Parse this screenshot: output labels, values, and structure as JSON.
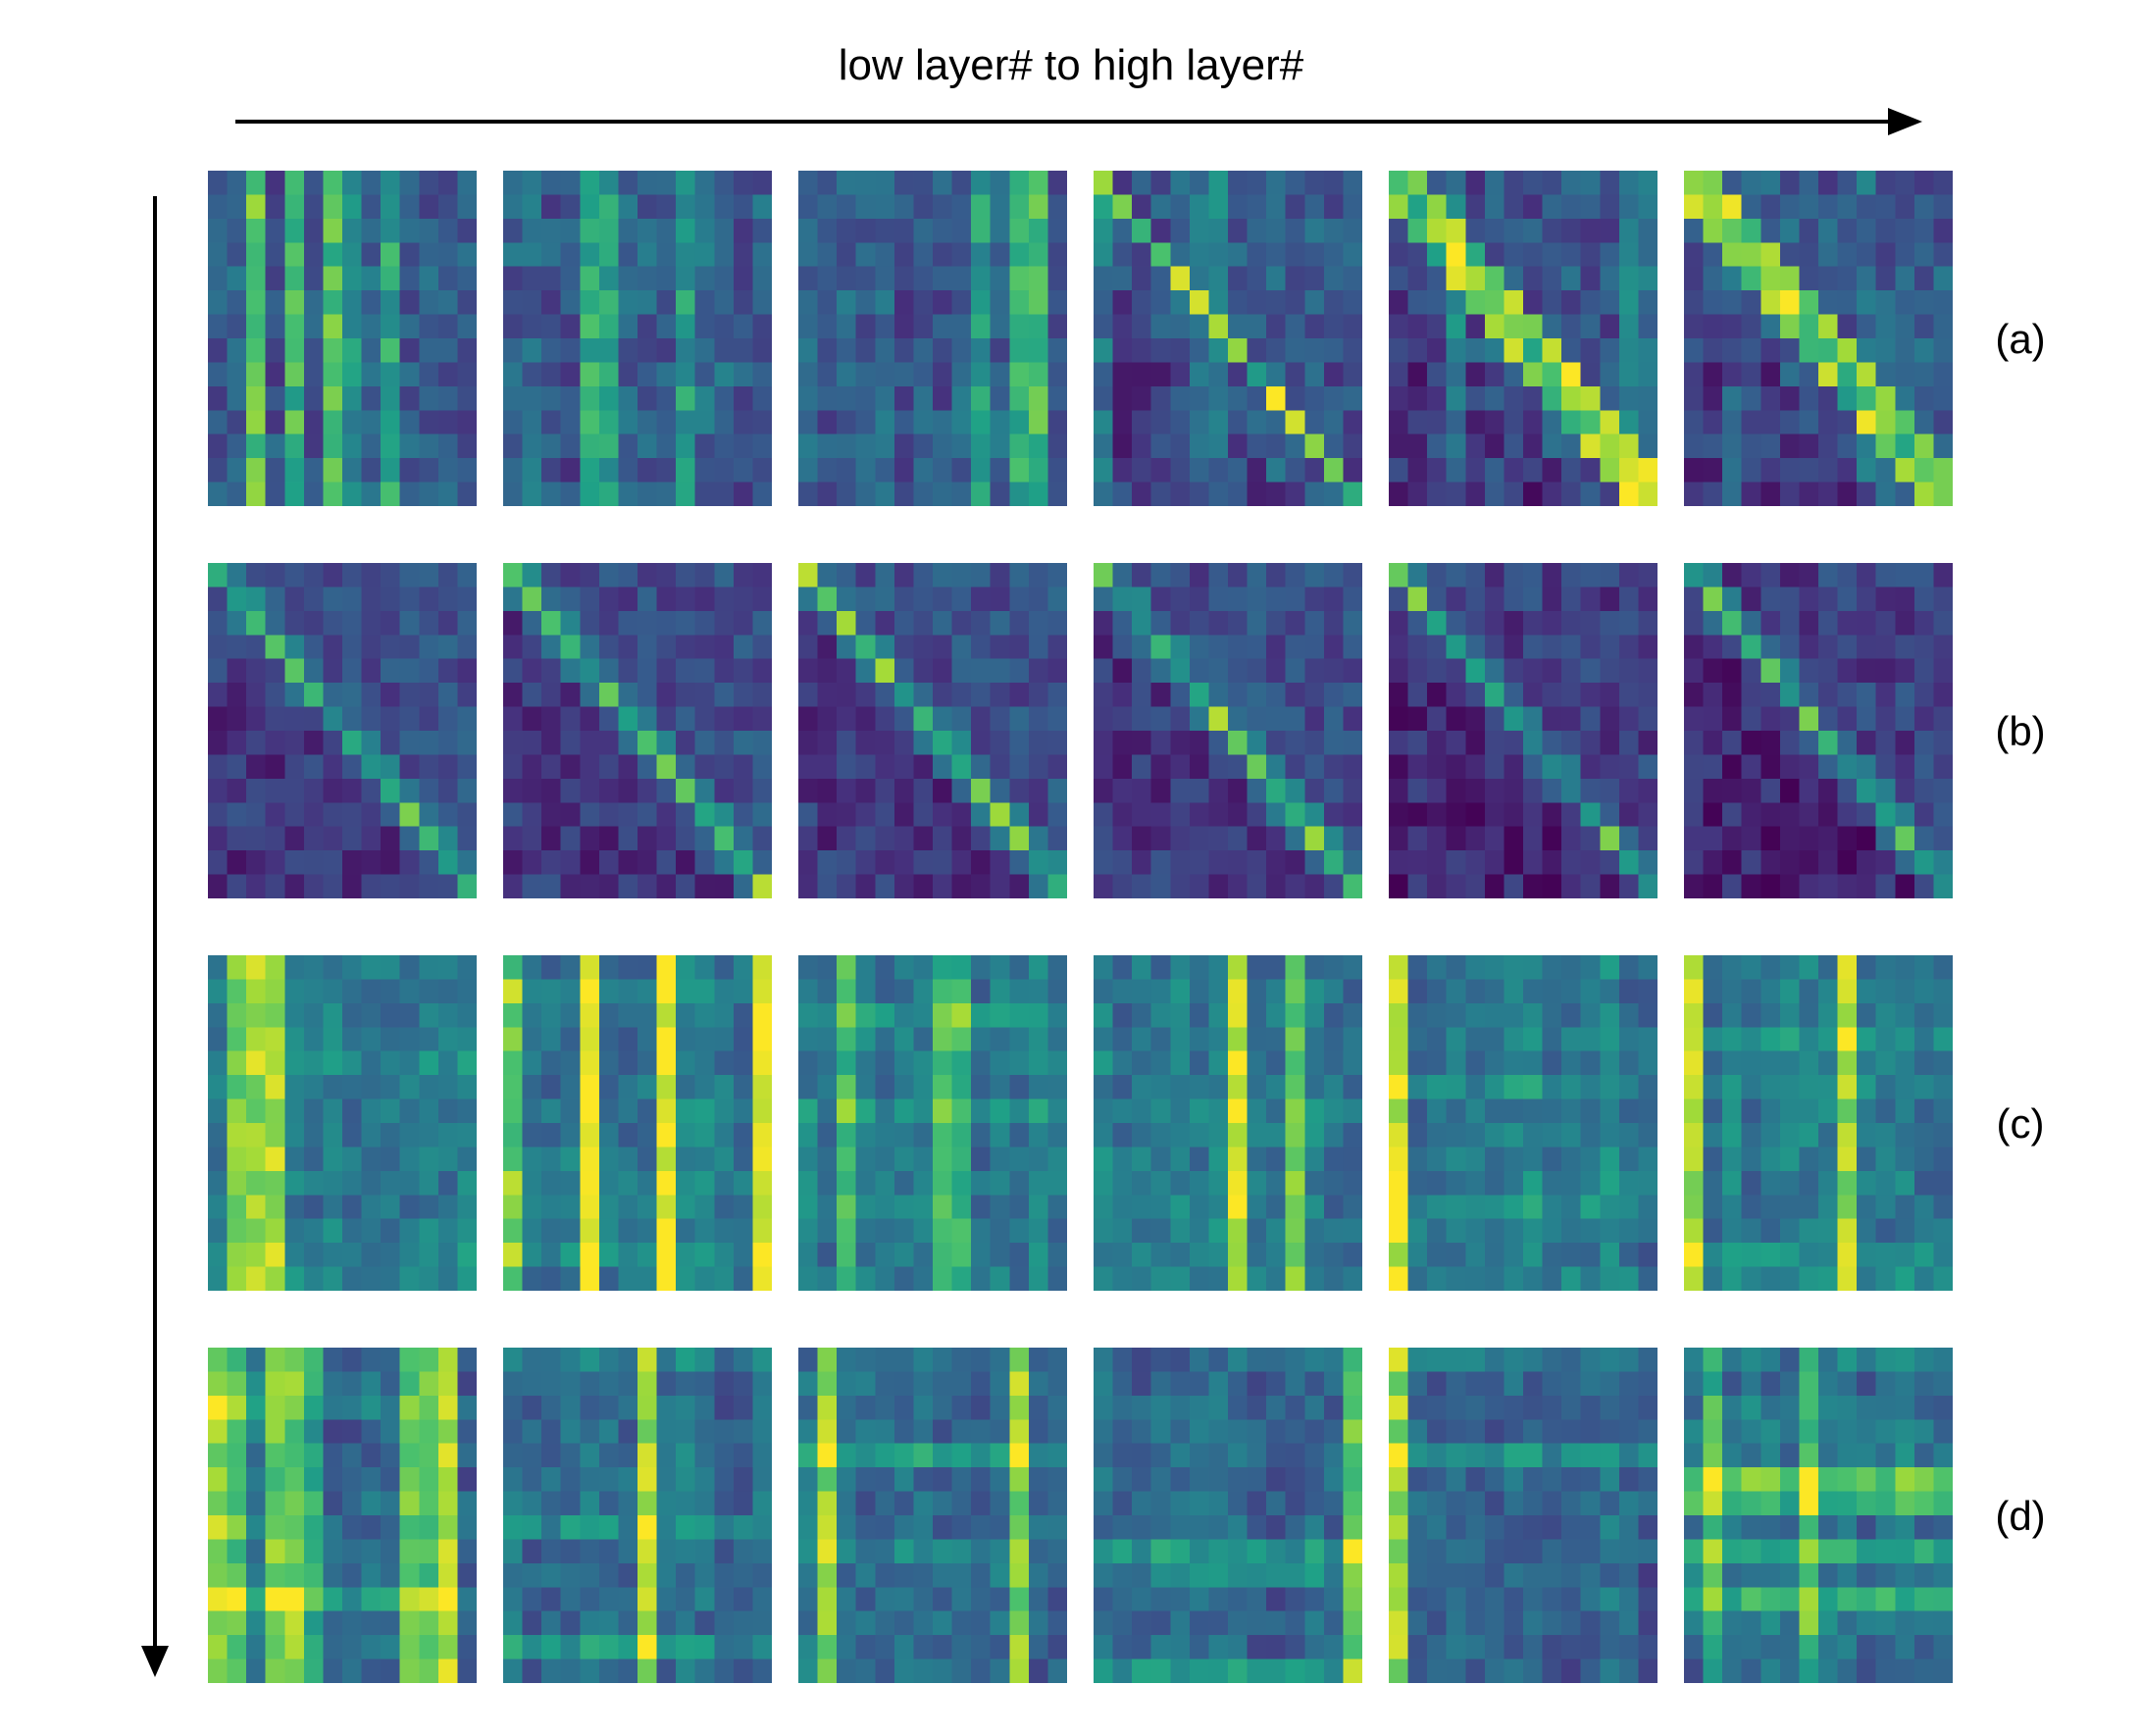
{
  "title": "low layer# to high layer#",
  "row_labels": [
    "(a)",
    "(b)",
    "(c)",
    "(d)"
  ],
  "colormap": [
    "#440154",
    "#46327e",
    "#365c8d",
    "#277f8e",
    "#1fa187",
    "#4ac16d",
    "#a0da39",
    "#fde725"
  ],
  "heatmap_grid": {
    "rows": 4,
    "cols": 6,
    "matrix_size": 14
  }
}
